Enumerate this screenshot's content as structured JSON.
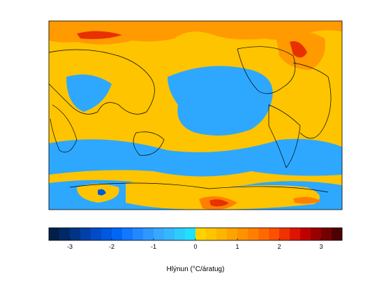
{
  "colorbar": {
    "label": "Hlýnun (°C/áratug)",
    "lim": [
      -3.5,
      3.5
    ],
    "ticks": [
      -3,
      -2,
      -1,
      0,
      1,
      2,
      3
    ],
    "colors": [
      "#00204a",
      "#002a66",
      "#003585",
      "#0040a8",
      "#004cc8",
      "#0058e0",
      "#0066f5",
      "#1477ff",
      "#2288ff",
      "#2e98ff",
      "#38a8ff",
      "#35b8ff",
      "#2cccff",
      "#20e0ff",
      "#ffd200",
      "#ffc400",
      "#ffb400",
      "#ffa300",
      "#ff9200",
      "#ff8000",
      "#ff6a00",
      "#ff5000",
      "#f03200",
      "#dd1500",
      "#c00000",
      "#9a0000",
      "#750000",
      "#4f0000"
    ]
  }
}
